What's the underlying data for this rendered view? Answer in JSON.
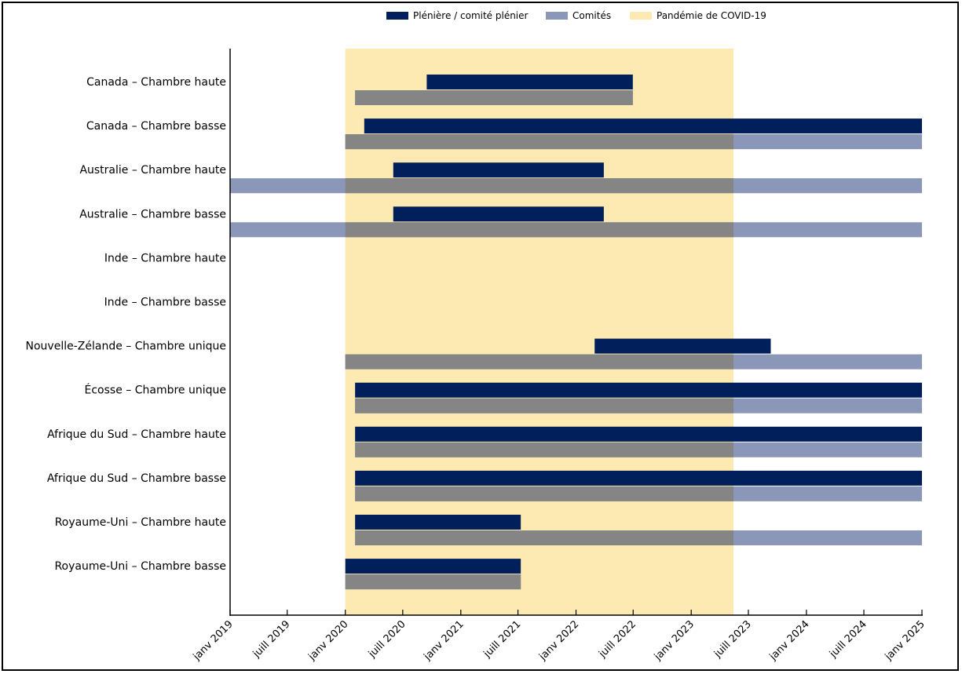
{
  "chart_data": {
    "type": "bar",
    "orientation": "horizontal-timeline",
    "title": "",
    "xlabel": "",
    "ylabel": "",
    "xlim": [
      "2019-01-01",
      "2025-01-01"
    ],
    "x_ticks": [
      "janv 2019",
      "juill 2019",
      "janv 2020",
      "juill 2020",
      "janv 2021",
      "juill 2021",
      "janv 2022",
      "juill 2022",
      "janv 2023",
      "juill 2023",
      "janv 2024",
      "juill 2024",
      "janv 2025"
    ],
    "x_tick_dates": [
      "2019-01-01",
      "2019-07-01",
      "2020-01-01",
      "2020-07-01",
      "2021-01-01",
      "2021-07-01",
      "2022-01-01",
      "2022-07-01",
      "2023-01-01",
      "2023-07-01",
      "2024-01-01",
      "2024-07-01",
      "2025-01-01"
    ],
    "grid": false,
    "legend_position": "top",
    "legend": [
      "Plénière / comité plénier",
      "Comités",
      "Pandémie de COVID-19"
    ],
    "colors": {
      "pleniere": "#001f5b",
      "comites": "#8a97b8",
      "comites_overlap": "#858585",
      "covid": "#fde9b2"
    },
    "covid_period": {
      "start": "2020-01-01",
      "end": "2023-05-15"
    },
    "categories": [
      "Canada – Chambre haute",
      "Canada – Chambre basse",
      "Australie – Chambre haute",
      "Australie – Chambre basse",
      "Inde – Chambre haute",
      "Inde – Chambre basse",
      "Nouvelle-Zélande – Chambre unique",
      "Écosse – Chambre unique",
      "Afrique du Sud – Chambre haute",
      "Afrique du Sud – Chambre basse",
      "Royaume-Uni – Chambre haute",
      "Royaume-Uni – Chambre basse"
    ],
    "series": [
      {
        "name": "Plénière / comité plénier",
        "ranges": [
          [
            "2020-09-15",
            "2022-06-30"
          ],
          [
            "2020-03-01",
            "2025-01-01"
          ],
          [
            "2020-06-01",
            "2022-03-30"
          ],
          [
            "2020-06-01",
            "2022-03-30"
          ],
          null,
          null,
          [
            "2022-03-01",
            "2023-09-10"
          ],
          [
            "2020-02-01",
            "2025-01-01"
          ],
          [
            "2020-02-01",
            "2025-01-01"
          ],
          [
            "2020-02-01",
            "2025-01-01"
          ],
          [
            "2020-02-01",
            "2021-07-10"
          ],
          [
            "2020-01-01",
            "2021-07-10"
          ]
        ]
      },
      {
        "name": "Comités",
        "ranges": [
          [
            "2020-02-01",
            "2022-06-30"
          ],
          [
            "2020-01-01",
            "2025-01-01"
          ],
          [
            "2019-01-01",
            "2025-01-01"
          ],
          [
            "2019-01-01",
            "2025-01-01"
          ],
          null,
          null,
          [
            "2020-01-01",
            "2025-01-01"
          ],
          [
            "2020-02-01",
            "2025-01-01"
          ],
          [
            "2020-02-01",
            "2025-01-01"
          ],
          [
            "2020-02-01",
            "2025-01-01"
          ],
          [
            "2020-02-01",
            "2025-01-01"
          ],
          [
            "2020-01-01",
            "2021-07-10"
          ]
        ]
      }
    ]
  }
}
